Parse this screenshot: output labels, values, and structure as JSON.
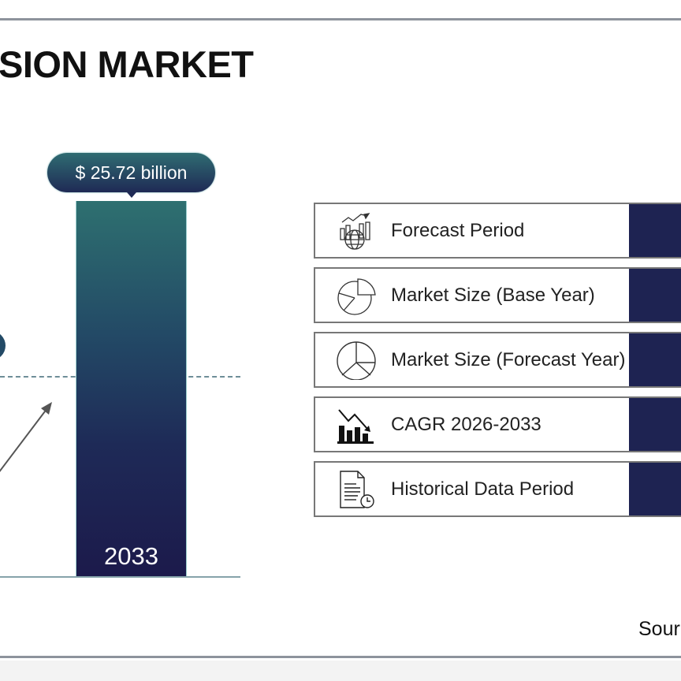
{
  "title": "SION MARKET",
  "chart_data": {
    "type": "bar",
    "categories": [
      "2033"
    ],
    "values": [
      25.72
    ],
    "data_labels": [
      "$ 25.72 billion"
    ],
    "unit": "billion USD",
    "bar_colors": [
      "#2e7070",
      "#1c1a4b"
    ]
  },
  "table": {
    "rows": [
      {
        "label": "Forecast Period",
        "icon": "chart-globe-icon"
      },
      {
        "label": "Market Size (Base Year)",
        "icon": "pie-chart-icon"
      },
      {
        "label": "Market Size (Forecast Year)",
        "icon": "pie-chart-icon"
      },
      {
        "label": "CAGR 2026-2033",
        "icon": "bar-chart-trend-icon"
      },
      {
        "label": "Historical Data Period",
        "icon": "document-clock-icon"
      }
    ],
    "value_color": "#1e2352"
  },
  "source": "Sour"
}
